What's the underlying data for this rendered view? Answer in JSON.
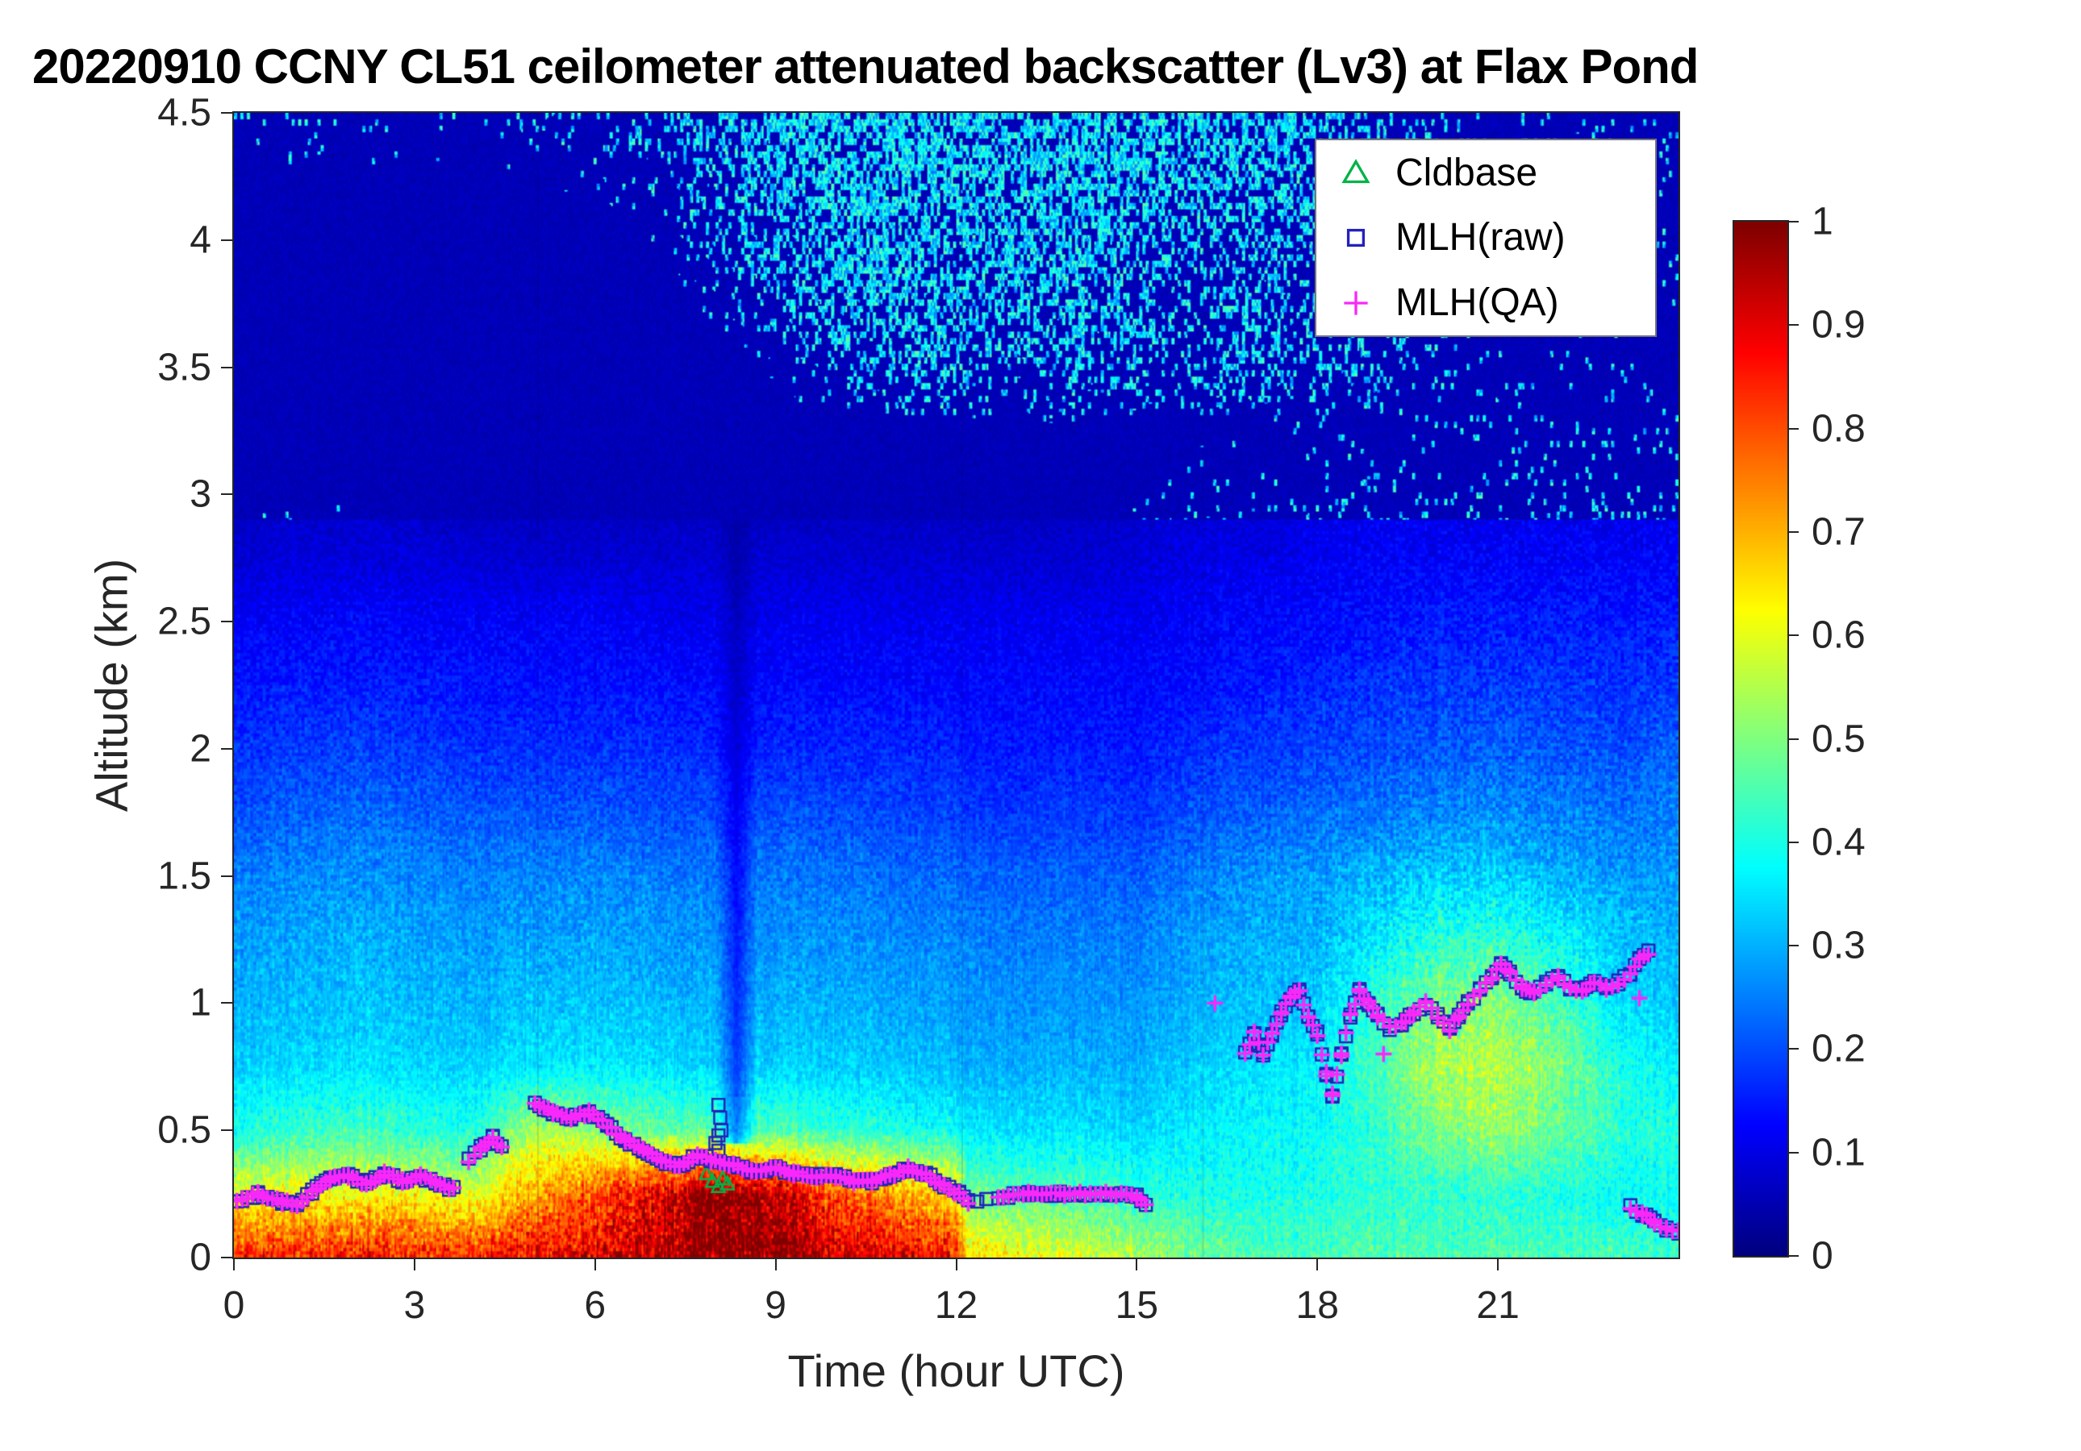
{
  "title": "20220910 CCNY CL51 ceilometer attenuated backscatter (Lv3) at Flax Pond",
  "axes": {
    "xlabel": "Time (hour UTC)",
    "ylabel": "Altitude (km)",
    "x_range": [
      0,
      24
    ],
    "y_range": [
      0,
      4.5
    ],
    "x_ticks": [
      0,
      3,
      6,
      9,
      12,
      15,
      18,
      21
    ],
    "x_tick_labels": [
      "0",
      "3",
      "6",
      "9",
      "12",
      "15",
      "18",
      "21"
    ],
    "y_ticks": [
      0,
      0.5,
      1,
      1.5,
      2,
      2.5,
      3,
      3.5,
      4,
      4.5
    ],
    "y_tick_labels": [
      "0",
      "0.5",
      "1",
      "1.5",
      "2",
      "2.5",
      "3",
      "3.5",
      "4",
      "4.5"
    ]
  },
  "colorbar": {
    "range": [
      0,
      1
    ],
    "ticks": [
      0,
      0.1,
      0.2,
      0.3,
      0.4,
      0.5,
      0.6,
      0.7,
      0.8,
      0.9,
      1
    ],
    "tick_labels": [
      "0",
      "0.1",
      "0.2",
      "0.3",
      "0.4",
      "0.5",
      "0.6",
      "0.7",
      "0.8",
      "0.9",
      "1"
    ]
  },
  "legend": {
    "items": [
      {
        "label": "Cldbase",
        "marker": "triangle",
        "color": "#00b347"
      },
      {
        "label": "MLH(raw)",
        "marker": "square",
        "color": "#2222bb"
      },
      {
        "label": "MLH(QA)",
        "marker": "plus",
        "color": "#f928f9"
      }
    ]
  },
  "chart_data": {
    "type": "heatmap",
    "title": "20220910 CCNY CL51 ceilometer attenuated backscatter (Lv3) at Flax Pond",
    "xlabel": "Time (hour UTC)",
    "ylabel": "Altitude (km)",
    "colormap": "jet",
    "value_range": [
      0,
      1
    ],
    "x_hours": [
      0,
      1,
      2,
      3,
      4,
      5,
      6,
      7,
      8,
      9,
      10,
      11,
      12,
      12.2,
      13,
      14,
      15,
      16,
      17,
      18,
      19,
      20,
      21,
      22,
      23,
      24
    ],
    "altitudes_km": [
      0,
      0.25,
      0.5,
      0.75,
      1.0,
      1.25,
      1.5,
      1.75,
      2.0,
      2.25,
      2.5,
      2.75,
      3.0,
      3.25,
      3.5,
      3.75,
      4.0,
      4.25,
      4.5
    ],
    "backscatter_grid": [
      [
        0.85,
        0.85,
        0.85,
        0.85,
        0.85,
        0.88,
        0.9,
        0.95,
        1.0,
        1.0,
        0.92,
        0.9,
        0.85,
        0.65,
        0.62,
        0.58,
        0.55,
        0.48,
        0.45,
        0.45,
        0.45,
        0.45,
        0.45,
        0.45,
        0.45,
        0.42
      ],
      [
        0.6,
        0.62,
        0.62,
        0.62,
        0.58,
        0.72,
        0.8,
        0.9,
        1.0,
        0.95,
        0.78,
        0.72,
        0.65,
        0.48,
        0.46,
        0.45,
        0.42,
        0.4,
        0.4,
        0.4,
        0.42,
        0.42,
        0.42,
        0.4,
        0.38,
        0.38
      ],
      [
        0.4,
        0.42,
        0.44,
        0.42,
        0.4,
        0.55,
        0.52,
        0.48,
        0.45,
        0.45,
        0.42,
        0.4,
        0.38,
        0.36,
        0.35,
        0.35,
        0.34,
        0.36,
        0.38,
        0.38,
        0.42,
        0.5,
        0.52,
        0.48,
        0.42,
        0.4
      ],
      [
        0.33,
        0.34,
        0.35,
        0.34,
        0.33,
        0.36,
        0.36,
        0.35,
        0.33,
        0.33,
        0.33,
        0.32,
        0.31,
        0.3,
        0.3,
        0.3,
        0.3,
        0.33,
        0.35,
        0.36,
        0.45,
        0.55,
        0.55,
        0.5,
        0.4,
        0.36
      ],
      [
        0.3,
        0.31,
        0.32,
        0.31,
        0.3,
        0.32,
        0.32,
        0.31,
        0.3,
        0.3,
        0.3,
        0.29,
        0.28,
        0.27,
        0.27,
        0.27,
        0.27,
        0.3,
        0.32,
        0.33,
        0.42,
        0.5,
        0.5,
        0.45,
        0.35,
        0.32
      ],
      [
        0.28,
        0.29,
        0.3,
        0.29,
        0.28,
        0.29,
        0.29,
        0.28,
        0.27,
        0.27,
        0.27,
        0.26,
        0.26,
        0.25,
        0.25,
        0.25,
        0.25,
        0.28,
        0.3,
        0.3,
        0.36,
        0.42,
        0.42,
        0.38,
        0.32,
        0.3
      ],
      [
        0.25,
        0.26,
        0.27,
        0.26,
        0.25,
        0.26,
        0.26,
        0.25,
        0.24,
        0.24,
        0.24,
        0.23,
        0.23,
        0.22,
        0.22,
        0.22,
        0.22,
        0.25,
        0.27,
        0.28,
        0.3,
        0.33,
        0.33,
        0.3,
        0.28,
        0.27
      ],
      [
        0.2,
        0.22,
        0.23,
        0.22,
        0.21,
        0.21,
        0.21,
        0.2,
        0.2,
        0.2,
        0.2,
        0.19,
        0.19,
        0.18,
        0.18,
        0.18,
        0.18,
        0.2,
        0.22,
        0.23,
        0.24,
        0.26,
        0.26,
        0.25,
        0.24,
        0.25
      ],
      [
        0.17,
        0.18,
        0.19,
        0.18,
        0.17,
        0.17,
        0.17,
        0.17,
        0.16,
        0.16,
        0.16,
        0.16,
        0.16,
        0.15,
        0.15,
        0.15,
        0.15,
        0.17,
        0.18,
        0.19,
        0.2,
        0.21,
        0.22,
        0.21,
        0.2,
        0.22
      ],
      [
        0.14,
        0.15,
        0.15,
        0.15,
        0.14,
        0.14,
        0.14,
        0.14,
        0.13,
        0.13,
        0.13,
        0.13,
        0.13,
        0.13,
        0.13,
        0.13,
        0.13,
        0.14,
        0.15,
        0.16,
        0.17,
        0.18,
        0.18,
        0.18,
        0.17,
        0.18
      ],
      [
        0.12,
        0.12,
        0.13,
        0.12,
        0.12,
        0.12,
        0.12,
        0.11,
        0.11,
        0.11,
        0.11,
        0.11,
        0.11,
        0.11,
        0.11,
        0.11,
        0.11,
        0.12,
        0.13,
        0.13,
        0.14,
        0.15,
        0.15,
        0.15,
        0.15,
        0.15
      ],
      [
        0.08,
        0.09,
        0.09,
        0.09,
        0.08,
        0.08,
        0.08,
        0.08,
        0.08,
        0.08,
        0.08,
        0.08,
        0.08,
        0.08,
        0.08,
        0.08,
        0.09,
        0.1,
        0.1,
        0.11,
        0.12,
        0.12,
        0.12,
        0.12,
        0.12,
        0.12
      ],
      [
        0.06,
        0.07,
        0.07,
        0.07,
        0.06,
        0.06,
        0.06,
        0.06,
        0.06,
        0.06,
        0.06,
        0.06,
        0.06,
        0.06,
        0.06,
        0.06,
        0.07,
        0.08,
        0.08,
        0.09,
        0.1,
        0.1,
        0.1,
        0.1,
        0.1,
        0.1
      ],
      [
        0.05,
        0.06,
        0.06,
        0.06,
        0.05,
        0.05,
        0.05,
        0.05,
        0.05,
        0.05,
        0.06,
        0.06,
        0.06,
        0.06,
        0.06,
        0.06,
        0.06,
        0.07,
        0.07,
        0.08,
        0.08,
        0.09,
        0.09,
        0.09,
        0.09,
        0.09
      ],
      [
        0.05,
        0.05,
        0.05,
        0.05,
        0.05,
        0.05,
        0.05,
        0.05,
        0.06,
        0.08,
        0.15,
        0.2,
        0.18,
        0.16,
        0.15,
        0.2,
        0.18,
        0.15,
        0.18,
        0.15,
        0.12,
        0.1,
        0.08,
        0.08,
        0.08,
        0.08
      ],
      [
        0.05,
        0.05,
        0.05,
        0.05,
        0.05,
        0.05,
        0.05,
        0.06,
        0.08,
        0.15,
        0.22,
        0.25,
        0.2,
        0.21,
        0.22,
        0.25,
        0.2,
        0.18,
        0.2,
        0.18,
        0.14,
        0.1,
        0.08,
        0.08,
        0.08,
        0.08
      ],
      [
        0.06,
        0.06,
        0.06,
        0.06,
        0.06,
        0.06,
        0.06,
        0.08,
        0.12,
        0.2,
        0.25,
        0.28,
        0.22,
        0.24,
        0.25,
        0.28,
        0.22,
        0.2,
        0.22,
        0.2,
        0.15,
        0.1,
        0.08,
        0.08,
        0.08,
        0.08
      ],
      [
        0.07,
        0.07,
        0.07,
        0.07,
        0.07,
        0.08,
        0.08,
        0.1,
        0.18,
        0.25,
        0.28,
        0.3,
        0.25,
        0.26,
        0.28,
        0.3,
        0.25,
        0.22,
        0.25,
        0.2,
        0.15,
        0.1,
        0.09,
        0.09,
        0.09,
        0.09
      ],
      [
        0.1,
        0.1,
        0.09,
        0.09,
        0.09,
        0.12,
        0.1,
        0.15,
        0.22,
        0.28,
        0.3,
        0.32,
        0.28,
        0.29,
        0.3,
        0.32,
        0.28,
        0.25,
        0.28,
        0.22,
        0.16,
        0.12,
        0.1,
        0.1,
        0.1,
        0.1
      ]
    ],
    "features": {
      "attenuation_streak": {
        "center_hour": 8.35,
        "half_width_hour": 0.35,
        "z_from_km": 0.45,
        "z_to_km": 3.0,
        "min_factor": 0.55
      },
      "panel_seams_hour": [
        5.05,
        12.1,
        16.1
      ]
    },
    "mlh_segments": [
      [
        [
          0.05,
          0.22
        ],
        [
          0.4,
          0.25
        ],
        [
          0.8,
          0.22
        ],
        [
          1.05,
          0.21
        ],
        [
          1.3,
          0.26
        ],
        [
          1.6,
          0.31
        ],
        [
          1.9,
          0.32
        ],
        [
          2.2,
          0.29
        ],
        [
          2.5,
          0.33
        ],
        [
          2.8,
          0.3
        ],
        [
          3.1,
          0.32
        ],
        [
          3.35,
          0.29
        ],
        [
          3.65,
          0.27
        ]
      ],
      [
        [
          3.9,
          0.38
        ],
        [
          4.1,
          0.43
        ],
        [
          4.3,
          0.47
        ],
        [
          4.45,
          0.44
        ]
      ],
      [
        [
          5.0,
          0.6
        ],
        [
          5.3,
          0.57
        ],
        [
          5.6,
          0.55
        ],
        [
          5.9,
          0.57
        ],
        [
          6.2,
          0.52
        ],
        [
          6.5,
          0.46
        ],
        [
          6.8,
          0.42
        ],
        [
          7.1,
          0.38
        ],
        [
          7.4,
          0.36
        ],
        [
          7.7,
          0.4
        ],
        [
          8.0,
          0.38
        ],
        [
          8.3,
          0.36
        ],
        [
          8.6,
          0.34
        ],
        [
          9.0,
          0.35
        ],
        [
          9.3,
          0.33
        ],
        [
          9.6,
          0.32
        ],
        [
          10.0,
          0.32
        ],
        [
          10.3,
          0.3
        ],
        [
          10.6,
          0.3
        ],
        [
          10.9,
          0.32
        ],
        [
          11.2,
          0.35
        ],
        [
          11.5,
          0.33
        ],
        [
          11.8,
          0.28
        ],
        [
          12.05,
          0.25
        ],
        [
          12.2,
          0.22
        ]
      ],
      [
        [
          12.7,
          0.24
        ],
        [
          13.2,
          0.25
        ],
        [
          13.8,
          0.25
        ],
        [
          14.4,
          0.25
        ],
        [
          15.0,
          0.24
        ],
        [
          15.15,
          0.21
        ]
      ],
      [
        [
          16.8,
          0.8
        ],
        [
          16.95,
          0.88
        ],
        [
          17.1,
          0.8
        ],
        [
          17.25,
          0.88
        ],
        [
          17.4,
          0.96
        ],
        [
          17.55,
          1.02
        ],
        [
          17.7,
          1.05
        ],
        [
          17.85,
          0.95
        ],
        [
          18.0,
          0.88
        ],
        [
          18.15,
          0.72
        ],
        [
          18.25,
          0.64
        ],
        [
          18.4,
          0.8
        ],
        [
          18.55,
          0.95
        ],
        [
          18.7,
          1.05
        ],
        [
          18.85,
          1.0
        ],
        [
          19.0,
          0.95
        ],
        [
          19.2,
          0.9
        ],
        [
          19.4,
          0.92
        ],
        [
          19.6,
          0.96
        ],
        [
          19.8,
          1.0
        ],
        [
          20.0,
          0.95
        ],
        [
          20.2,
          0.9
        ],
        [
          20.35,
          0.95
        ],
        [
          20.5,
          1.0
        ],
        [
          20.7,
          1.05
        ],
        [
          20.9,
          1.1
        ],
        [
          21.05,
          1.15
        ],
        [
          21.2,
          1.12
        ],
        [
          21.4,
          1.06
        ],
        [
          21.6,
          1.04
        ],
        [
          21.8,
          1.08
        ],
        [
          22.0,
          1.1
        ],
        [
          22.2,
          1.06
        ],
        [
          22.4,
          1.05
        ],
        [
          22.6,
          1.08
        ],
        [
          22.8,
          1.06
        ],
        [
          23.0,
          1.08
        ],
        [
          23.2,
          1.12
        ],
        [
          23.35,
          1.18
        ],
        [
          23.5,
          1.2
        ]
      ],
      [
        [
          23.2,
          0.2
        ],
        [
          23.4,
          0.17
        ],
        [
          23.6,
          0.14
        ],
        [
          23.8,
          0.11
        ],
        [
          24.0,
          0.1
        ]
      ]
    ],
    "series": [
      {
        "name": "Cldbase",
        "marker": "triangle",
        "color": "#00b347",
        "points": [
          [
            7.85,
            0.33
          ],
          [
            7.95,
            0.3
          ],
          [
            8.05,
            0.28
          ],
          [
            8.12,
            0.31
          ],
          [
            8.2,
            0.29
          ]
        ]
      },
      {
        "name": "MLH(raw)",
        "marker": "square",
        "color": "#2222bb",
        "uses": "mlh_segments",
        "extra_points": [
          [
            8.05,
            0.42
          ],
          [
            8.05,
            0.48
          ],
          [
            8.08,
            0.55
          ],
          [
            8.1,
            0.5
          ],
          [
            8.0,
            0.45
          ],
          [
            8.05,
            0.6
          ],
          [
            12.35,
            0.22
          ],
          [
            12.5,
            0.23
          ]
        ]
      },
      {
        "name": "MLH(QA)",
        "marker": "plus",
        "color": "#f928f9",
        "uses": "mlh_segments",
        "extra_points": [
          [
            16.3,
            1.0
          ],
          [
            19.1,
            0.8
          ],
          [
            23.35,
            1.02
          ]
        ]
      }
    ]
  }
}
